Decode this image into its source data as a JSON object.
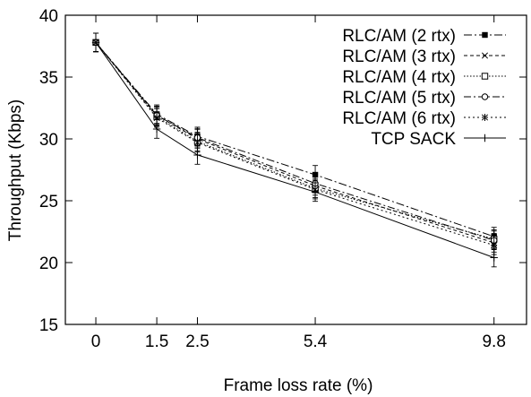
{
  "chart_data": {
    "type": "line",
    "xlabel": "Frame loss rate (%)",
    "ylabel": "Throughput (Kbps)",
    "ylim": [
      15,
      40
    ],
    "x": [
      0,
      1.5,
      2.5,
      5.4,
      9.8
    ],
    "x_tick_labels": [
      "0",
      "1.5",
      "2.5",
      "5.4",
      "9.8"
    ],
    "y_ticks": [
      15,
      20,
      25,
      30,
      35,
      40
    ],
    "legend_position": "top-right",
    "grid": false,
    "series": [
      {
        "name": "RLC/AM (2 rtx)",
        "values": [
          37.8,
          32.0,
          30.2,
          27.1,
          22.1
        ],
        "dash": "9,3,2,3",
        "marker": "filled-square"
      },
      {
        "name": "RLC/AM (3 rtx)",
        "values": [
          37.8,
          31.9,
          30.0,
          26.2,
          21.6
        ],
        "dash": "4,3",
        "marker": "x"
      },
      {
        "name": "RLC/AM (4 rtx)",
        "values": [
          37.8,
          31.8,
          29.8,
          26.0,
          21.9
        ],
        "dash": "1.5,2",
        "marker": "open-square"
      },
      {
        "name": "RLC/AM (5 rtx)",
        "values": [
          37.8,
          31.9,
          30.1,
          26.4,
          21.8
        ],
        "dash": "8,3,2,3",
        "marker": "open-circle"
      },
      {
        "name": "RLC/AM (6 rtx)",
        "values": [
          37.8,
          31.7,
          29.7,
          25.9,
          21.4
        ],
        "dash": "2,3",
        "marker": "asterisk"
      },
      {
        "name": "TCP SACK",
        "values": [
          37.8,
          30.8,
          28.7,
          25.7,
          20.4
        ],
        "dash": "",
        "marker": "plus"
      }
    ]
  }
}
